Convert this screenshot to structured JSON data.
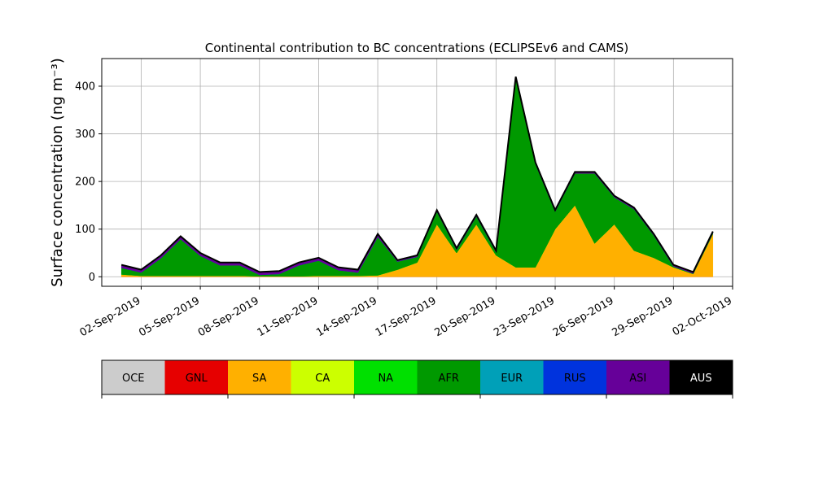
{
  "chart_data": {
    "type": "stacked_area",
    "title": "Continental contribution to BC concentrations (ECLIPSEv6 and CAMS)",
    "y_label": "Surface concentration (ng m⁻³)",
    "x": [
      "2019-09-01",
      "2019-09-02",
      "2019-09-03",
      "2019-09-04",
      "2019-09-05",
      "2019-09-06",
      "2019-09-07",
      "2019-09-08",
      "2019-09-09",
      "2019-09-10",
      "2019-09-11",
      "2019-09-12",
      "2019-09-13",
      "2019-09-14",
      "2019-09-15",
      "2019-09-16",
      "2019-09-17",
      "2019-09-18",
      "2019-09-19",
      "2019-09-20",
      "2019-09-21",
      "2019-09-22",
      "2019-09-23",
      "2019-09-24",
      "2019-09-25",
      "2019-09-26",
      "2019-09-27",
      "2019-09-28",
      "2019-09-29",
      "2019-09-30",
      "2019-10-01"
    ],
    "series": [
      {
        "name": "OCE",
        "color": "#cccccc",
        "values": [
          0,
          0,
          0,
          0,
          0,
          0,
          0,
          0,
          0,
          0,
          0,
          0,
          0,
          0,
          0,
          0,
          0,
          0,
          0,
          0,
          0,
          0,
          0,
          0,
          0,
          0,
          0,
          0,
          0,
          0,
          0
        ]
      },
      {
        "name": "GNL",
        "color": "#e60000",
        "values": [
          0,
          0,
          0,
          0,
          0,
          0,
          0,
          0,
          0,
          0,
          0,
          0,
          0,
          0,
          0,
          0,
          0,
          0,
          0,
          0,
          0,
          0,
          0,
          0,
          0,
          0,
          0,
          0,
          0,
          0,
          0
        ]
      },
      {
        "name": "SA",
        "color": "#ffb000",
        "values": [
          5,
          2,
          2,
          2,
          2,
          2,
          2,
          1,
          1,
          1,
          2,
          2,
          2,
          3,
          15,
          30,
          110,
          50,
          110,
          45,
          20,
          20,
          100,
          150,
          70,
          110,
          55,
          40,
          20,
          6,
          90
        ]
      },
      {
        "name": "CA",
        "color": "#ccff00",
        "values": [
          0,
          0,
          0,
          0,
          0,
          0,
          0,
          0,
          0,
          0,
          0,
          0,
          0,
          0,
          0,
          0,
          0,
          0,
          0,
          0,
          0,
          0,
          0,
          0,
          0,
          0,
          0,
          0,
          0,
          0,
          0
        ]
      },
      {
        "name": "NA",
        "color": "#00e000",
        "values": [
          0,
          0,
          0,
          0,
          0,
          0,
          0,
          0,
          0,
          0,
          0,
          0,
          0,
          0,
          0,
          0,
          0,
          0,
          0,
          0,
          0,
          0,
          0,
          0,
          0,
          0,
          0,
          0,
          0,
          0,
          0
        ]
      },
      {
        "name": "AFR",
        "color": "#009900",
        "values": [
          14,
          7,
          37,
          77,
          42,
          22,
          22,
          3,
          5,
          23,
          32,
          12,
          7,
          81,
          17,
          12,
          27,
          7,
          17,
          7,
          397,
          217,
          37,
          67,
          147,
          57,
          87,
          47,
          2,
          1,
          2
        ]
      },
      {
        "name": "EUR",
        "color": "#00a0b8",
        "values": [
          0,
          0,
          0,
          0,
          0,
          0,
          0,
          0,
          0,
          0,
          0,
          0,
          0,
          0,
          0,
          0,
          0,
          0,
          0,
          0,
          0,
          0,
          0,
          0,
          0,
          0,
          0,
          0,
          0,
          0,
          0
        ]
      },
      {
        "name": "RUS",
        "color": "#0033dd",
        "values": [
          0,
          0,
          0,
          0,
          0,
          0,
          0,
          0,
          0,
          0,
          0,
          0,
          0,
          0,
          0,
          0,
          0,
          0,
          0,
          0,
          0,
          0,
          0,
          0,
          0,
          0,
          0,
          0,
          0,
          0,
          0
        ]
      },
      {
        "name": "ASI",
        "color": "#660099",
        "values": [
          5,
          5,
          5,
          5,
          5,
          5,
          5,
          5,
          5,
          5,
          5,
          5,
          5,
          5,
          2,
          2,
          2,
          2,
          2,
          2,
          2,
          2,
          2,
          2,
          2,
          2,
          2,
          2,
          2,
          2,
          2
        ]
      },
      {
        "name": "AUS",
        "color": "#000000",
        "values": [
          1,
          1,
          1,
          1,
          1,
          1,
          1,
          1,
          1,
          1,
          1,
          1,
          1,
          1,
          1,
          1,
          1,
          1,
          1,
          1,
          1,
          1,
          1,
          1,
          1,
          1,
          1,
          1,
          1,
          1,
          1
        ]
      }
    ],
    "xlim": [
      "2019-08-31",
      "2019-10-02"
    ],
    "xticks": [
      {
        "value": "2019-09-02",
        "label": "02-Sep-2019"
      },
      {
        "value": "2019-09-05",
        "label": "05-Sep-2019"
      },
      {
        "value": "2019-09-08",
        "label": "08-Sep-2019"
      },
      {
        "value": "2019-09-11",
        "label": "11-Sep-2019"
      },
      {
        "value": "2019-09-14",
        "label": "14-Sep-2019"
      },
      {
        "value": "2019-09-17",
        "label": "17-Sep-2019"
      },
      {
        "value": "2019-09-20",
        "label": "20-Sep-2019"
      },
      {
        "value": "2019-09-23",
        "label": "23-Sep-2019"
      },
      {
        "value": "2019-09-26",
        "label": "26-Sep-2019"
      },
      {
        "value": "2019-09-29",
        "label": "29-Sep-2019"
      },
      {
        "value": "2019-10-02",
        "label": "02-Oct-2019"
      }
    ],
    "ylim": [
      -20,
      458
    ],
    "yticks": [
      0,
      100,
      200,
      300,
      400
    ],
    "grid": true
  }
}
